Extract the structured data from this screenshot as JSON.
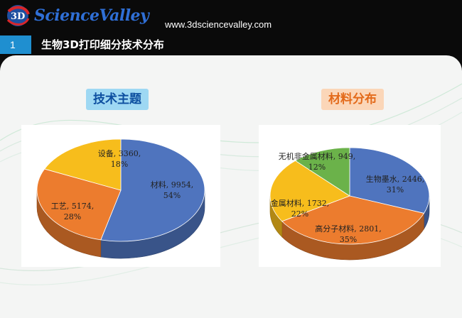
{
  "header": {
    "logo_text": "ScienceValley",
    "logo_mark": "3D",
    "website": "www.3dsciencevalley.com",
    "section_number": "1",
    "section_title": "生物3D打印细分技术分布"
  },
  "colors": {
    "blue": "#4f74be",
    "orange": "#ec7c2e",
    "yellow": "#f7bd1c",
    "green": "#6bb24a",
    "title_blue_bg": "#9ed8f3",
    "title_orange_bg": "#fbd6b8"
  },
  "chart_data": [
    {
      "type": "pie",
      "title": "技术主题",
      "slices": [
        {
          "label": "材料",
          "value": 9954,
          "percent": "54%",
          "color": "#4f74be"
        },
        {
          "label": "工艺",
          "value": 5174,
          "percent": "28%",
          "color": "#ec7c2e"
        },
        {
          "label": "设备",
          "value": 3360,
          "percent": "18%",
          "color": "#f7bd1c"
        }
      ]
    },
    {
      "type": "pie",
      "title": "材料分布",
      "slices": [
        {
          "label": "生物墨水",
          "value": 2446,
          "percent": "31%",
          "color": "#4f74be"
        },
        {
          "label": "高分子材料",
          "value": 2801,
          "percent": "35%",
          "color": "#ec7c2e"
        },
        {
          "label": "金属材料",
          "value": 1732,
          "percent": "22%",
          "color": "#f7bd1c"
        },
        {
          "label": "无机非金属材料",
          "value": 949,
          "percent": "12%",
          "color": "#6bb24a"
        }
      ]
    }
  ]
}
